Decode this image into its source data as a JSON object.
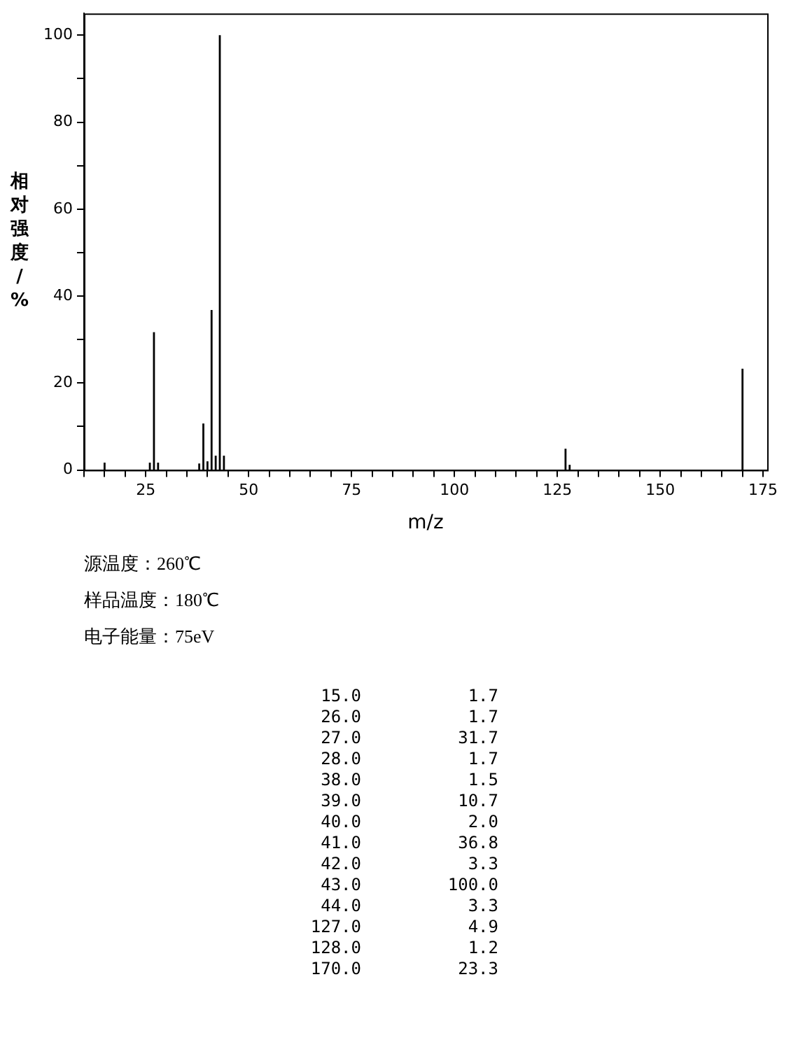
{
  "chart_data": {
    "type": "bar",
    "xlabel": "m/z",
    "ylabel": "相对强度/%",
    "x": [
      15,
      26,
      27,
      28,
      38,
      39,
      40,
      41,
      42,
      43,
      44,
      127,
      128,
      170
    ],
    "values": [
      1.7,
      1.7,
      31.7,
      1.7,
      1.5,
      10.7,
      2.0,
      36.8,
      3.3,
      100.0,
      3.3,
      4.9,
      1.2,
      23.3
    ],
    "color": "#000000",
    "xlim": [
      10,
      176
    ],
    "xticks": [
      {
        "value": 10,
        "label": null
      },
      {
        "value": 15,
        "label": null
      },
      {
        "value": 20,
        "label": null
      },
      25,
      {
        "value": 30,
        "label": null
      },
      {
        "value": 35,
        "label": null
      },
      {
        "value": 40,
        "label": null
      },
      {
        "value": 45,
        "label": null
      },
      50,
      {
        "value": 55,
        "label": null
      },
      {
        "value": 60,
        "label": null
      },
      {
        "value": 65,
        "label": null
      },
      {
        "value": 70,
        "label": null
      },
      75,
      {
        "value": 80,
        "label": null
      },
      {
        "value": 85,
        "label": null
      },
      {
        "value": 90,
        "label": null
      },
      {
        "value": 95,
        "label": null
      },
      100,
      {
        "value": 105,
        "label": null
      },
      {
        "value": 110,
        "label": null
      },
      {
        "value": 115,
        "label": null
      },
      {
        "value": 120,
        "label": null
      },
      125,
      {
        "value": 130,
        "label": null
      },
      {
        "value": 135,
        "label": null
      },
      {
        "value": 140,
        "label": null
      },
      {
        "value": 145,
        "label": null
      },
      150,
      {
        "value": 155,
        "label": null
      },
      {
        "value": 160,
        "label": null
      },
      {
        "value": 165,
        "label": null
      },
      {
        "value": 170,
        "label": null
      },
      175
    ],
    "ylim": [
      0,
      105
    ],
    "yticks": [
      0,
      {
        "value": 10,
        "label": null
      },
      20,
      {
        "value": 30,
        "label": null
      },
      40,
      {
        "value": 50,
        "label": null
      },
      60,
      {
        "value": 70,
        "label": null
      },
      80,
      {
        "value": 90,
        "label": null
      },
      100
    ],
    "grid": false,
    "legend": false,
    "annotations": [
      "源温度：260℃",
      "样品温度：180℃",
      "电子能量：75eV",
      "15.0",
      "26.0",
      "27.0",
      "28.0",
      "38.0",
      "39.0",
      "40.0",
      "41.0",
      "42.0",
      "43.0",
      "44.0",
      "127.0",
      "128.0",
      "170.0",
      "1.7",
      "1.7",
      "31.7",
      "1.7",
      "1.5",
      "10.7",
      "2.0",
      "36.8",
      "3.3",
      "100.0",
      "3.3",
      "4.9",
      "1.2",
      "23.3"
    ]
  }
}
